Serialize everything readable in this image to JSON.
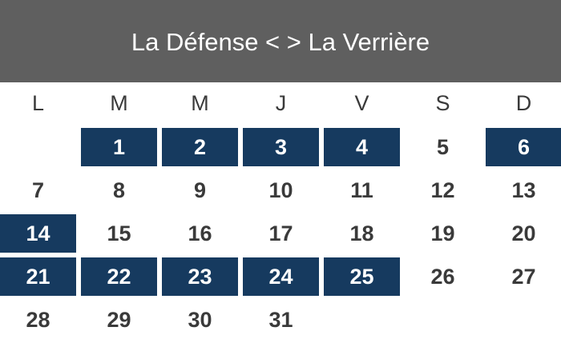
{
  "header": {
    "title": "La Défense < > La Verrière",
    "background_color": "#5f5f5f"
  },
  "highlight_color": "#163a5f",
  "weekdays": [
    "L",
    "M",
    "M",
    "J",
    "V",
    "S",
    "D"
  ],
  "weeks": [
    [
      {
        "day": "",
        "highlighted": false
      },
      {
        "day": "1",
        "highlighted": true
      },
      {
        "day": "2",
        "highlighted": true
      },
      {
        "day": "3",
        "highlighted": true
      },
      {
        "day": "4",
        "highlighted": true
      },
      {
        "day": "5",
        "highlighted": false
      },
      {
        "day": "6",
        "highlighted": true
      }
    ],
    [
      {
        "day": "7",
        "highlighted": false
      },
      {
        "day": "8",
        "highlighted": false
      },
      {
        "day": "9",
        "highlighted": false
      },
      {
        "day": "10",
        "highlighted": false
      },
      {
        "day": "11",
        "highlighted": false
      },
      {
        "day": "12",
        "highlighted": false
      },
      {
        "day": "13",
        "highlighted": false
      }
    ],
    [
      {
        "day": "14",
        "highlighted": true
      },
      {
        "day": "15",
        "highlighted": false
      },
      {
        "day": "16",
        "highlighted": false
      },
      {
        "day": "17",
        "highlighted": false
      },
      {
        "day": "18",
        "highlighted": false
      },
      {
        "day": "19",
        "highlighted": false
      },
      {
        "day": "20",
        "highlighted": false
      }
    ],
    [
      {
        "day": "21",
        "highlighted": true
      },
      {
        "day": "22",
        "highlighted": true
      },
      {
        "day": "23",
        "highlighted": true
      },
      {
        "day": "24",
        "highlighted": true
      },
      {
        "day": "25",
        "highlighted": true
      },
      {
        "day": "26",
        "highlighted": false
      },
      {
        "day": "27",
        "highlighted": false
      }
    ],
    [
      {
        "day": "28",
        "highlighted": false
      },
      {
        "day": "29",
        "highlighted": false
      },
      {
        "day": "30",
        "highlighted": false
      },
      {
        "day": "31",
        "highlighted": false
      },
      {
        "day": "",
        "highlighted": false
      },
      {
        "day": "",
        "highlighted": false
      },
      {
        "day": "",
        "highlighted": false
      }
    ]
  ]
}
